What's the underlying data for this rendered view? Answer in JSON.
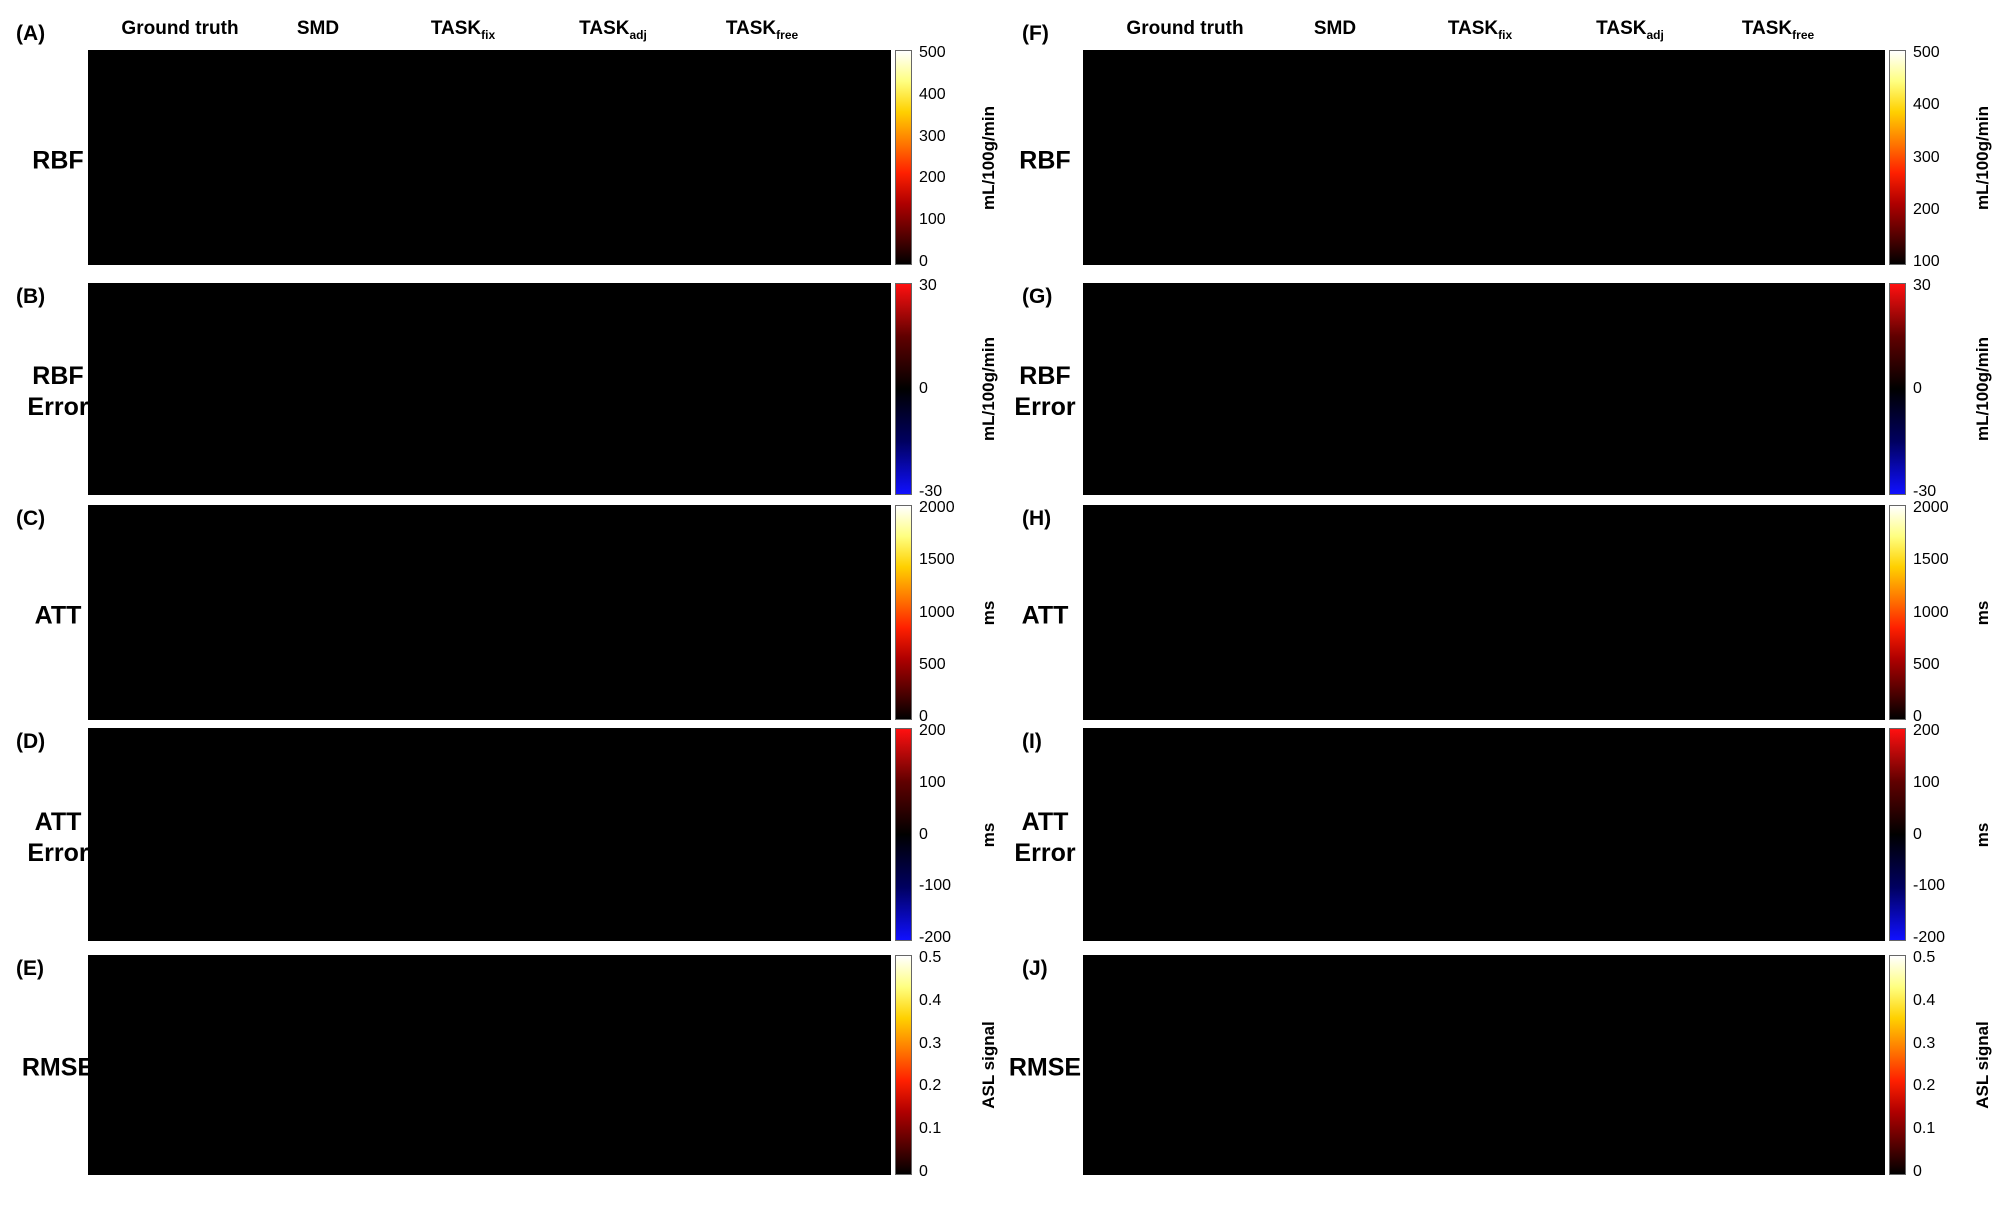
{
  "columns": [
    {
      "main": "Ground truth",
      "sub": ""
    },
    {
      "main": "SMD",
      "sub": ""
    },
    {
      "main": "TASK",
      "sub": "fix"
    },
    {
      "main": "TASK",
      "sub": "adj"
    },
    {
      "main": "TASK",
      "sub": "free"
    }
  ],
  "rows": [
    {
      "key": "rbf",
      "label_lines": [
        "RBF"
      ],
      "left_letter": "(A)",
      "right_letter": "(F)",
      "unit": "mL/100g/min",
      "ticks": [
        "500",
        "400",
        "300",
        "200",
        "100",
        "0"
      ],
      "right_ticks": [
        "500",
        "400",
        "300",
        "200",
        "100"
      ],
      "colormap": "hot",
      "show_ground_truth": true
    },
    {
      "key": "rbf_error",
      "label_lines": [
        "RBF",
        "Error"
      ],
      "left_letter": "(B)",
      "right_letter": "(G)",
      "unit": "mL/100g/min",
      "ticks": [
        "30",
        "0",
        "-30"
      ],
      "right_ticks": [
        "30",
        "0",
        "-30"
      ],
      "colormap": "diverging",
      "show_ground_truth": false
    },
    {
      "key": "att",
      "label_lines": [
        "ATT"
      ],
      "left_letter": "(C)",
      "right_letter": "(H)",
      "unit": "ms",
      "ticks": [
        "2000",
        "1500",
        "1000",
        "500",
        "0"
      ],
      "right_ticks": [
        "2000",
        "1500",
        "1000",
        "500",
        "0"
      ],
      "colormap": "hot",
      "show_ground_truth": true
    },
    {
      "key": "att_error",
      "label_lines": [
        "ATT",
        "Error"
      ],
      "left_letter": "(D)",
      "right_letter": "(I)",
      "unit": "ms",
      "ticks": [
        "200",
        "100",
        "0",
        "-100",
        "-200"
      ],
      "right_ticks": [
        "200",
        "100",
        "0",
        "-100",
        "-200"
      ],
      "colormap": "diverging",
      "show_ground_truth": false
    },
    {
      "key": "rmse",
      "label_lines": [
        "RMSE"
      ],
      "left_letter": "(E)",
      "right_letter": "(J)",
      "unit": "ASL signal",
      "ticks": [
        "0.5",
        "0.4",
        "0.3",
        "0.2",
        "0.1",
        "0"
      ],
      "right_ticks": [
        "0.5",
        "0.4",
        "0.3",
        "0.2",
        "0.1",
        "0"
      ],
      "colormap": "hot",
      "show_ground_truth": true
    }
  ],
  "colors": {
    "hot": [
      "#000000",
      "#5a0000",
      "#b00000",
      "#ff2000",
      "#ff7a00",
      "#ffd000",
      "#ffff80",
      "#ffffff"
    ],
    "diverging": [
      "#ff1010",
      "#600000",
      "#000000",
      "#000060",
      "#1010ff"
    ]
  }
}
